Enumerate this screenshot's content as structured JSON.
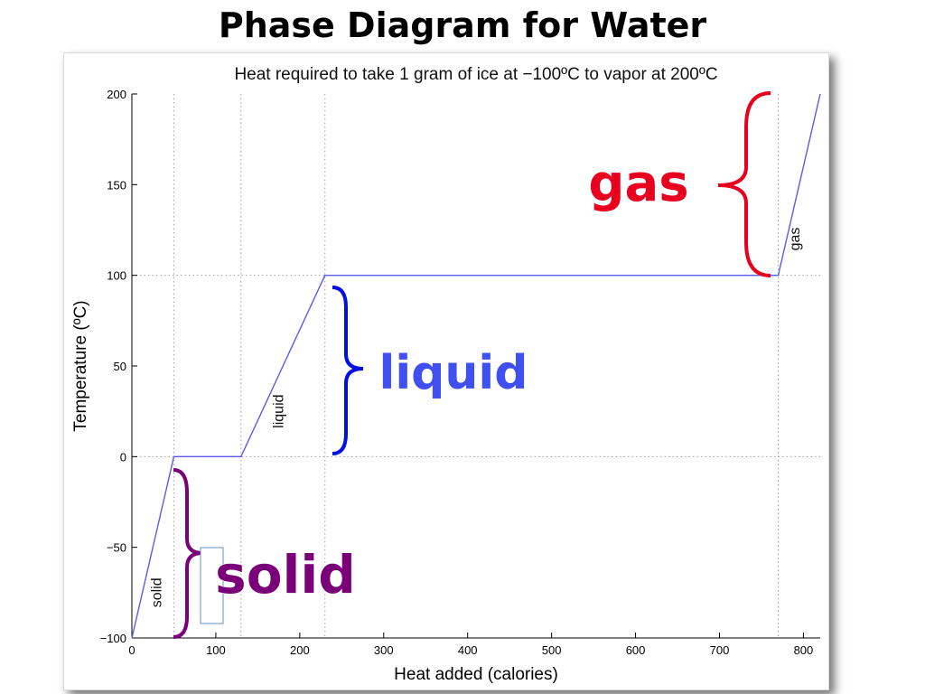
{
  "slide": {
    "title": "Phase Diagram for Water"
  },
  "chart_data": {
    "type": "line",
    "title": "Heat required to take 1 gram of ice at −100ºC to vapor at 200ºC",
    "xlabel": "Heat added (calories)",
    "ylabel": "Temperature (ºC)",
    "xlim": [
      0,
      820
    ],
    "ylim": [
      -100,
      200
    ],
    "x_ticks": [
      0,
      100,
      200,
      300,
      400,
      500,
      600,
      700,
      800
    ],
    "x_tick_labels": [
      "0",
      "100",
      "200",
      "300",
      "400",
      "500",
      "600",
      "700",
      "800"
    ],
    "y_ticks": [
      -100,
      -50,
      0,
      50,
      100,
      150,
      200
    ],
    "y_tick_labels": [
      "−100",
      "−50",
      "0",
      "50",
      "100",
      "150",
      "200"
    ],
    "grid_x": [
      50,
      130,
      230,
      770
    ],
    "grid_y": [
      0,
      100
    ],
    "grid": true,
    "line_color": "#5b5bf0",
    "series": [
      {
        "x": [
          0,
          50,
          130,
          230,
          770,
          820
        ],
        "y": [
          -100,
          0,
          0,
          100,
          100,
          200
        ]
      }
    ],
    "segment_labels": [
      {
        "text": "solid",
        "x": 35,
        "y": -75
      },
      {
        "text": "liquid",
        "x": 180,
        "y": 25
      },
      {
        "text": "gas",
        "x": 795,
        "y": 120
      }
    ]
  },
  "annotations": [
    {
      "text": "gas",
      "color": "#e8001e",
      "outline": "#e8001e",
      "y_range": [
        100,
        200
      ]
    },
    {
      "text": "liquid",
      "color": "#3f4ff0",
      "outline": "#0010e0",
      "y_range": [
        0,
        100
      ]
    },
    {
      "text": "solid",
      "color": "#7a007a",
      "outline": "#7a007a",
      "y_range": [
        -100,
        -5
      ]
    }
  ],
  "colors": {
    "grid": "#a0a0a0",
    "axis": "#000000"
  }
}
